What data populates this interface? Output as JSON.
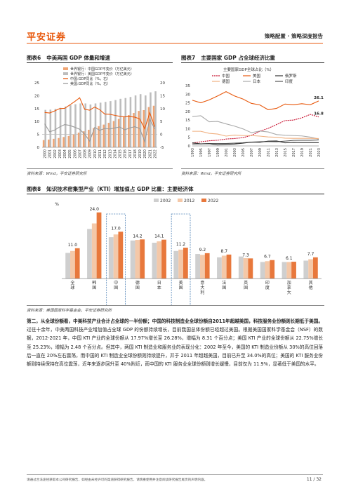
{
  "header": {
    "logo": "平安证券",
    "right": "策略配置 · 策略深度报告"
  },
  "figures": [
    {
      "num": "图表6",
      "title": "中美两国 GDP 体量和增速",
      "source": "资料来源：Wind，平安证券研究所"
    },
    {
      "num": "图表7",
      "title": "主要国家 GDP 占全球经济比重",
      "source": "资料来源：Wind，平安证券研究所"
    },
    {
      "num": "图表8",
      "title": "知识技术密集型产业（KTI）增加值占 GDP 比重：主要经济体",
      "source": "资料来源：美国国家科学基金会，平安证券研究所"
    }
  ],
  "chart_data": [
    {
      "type": "bar",
      "legend": [
        "世界银行：中国GDP不变价（万亿美元）",
        "世界银行：美国GDP不变价（万亿美元）",
        "中国:GDP同比（%，右）",
        "美国:GDP同比（%，右）"
      ],
      "categories": [
        "2000",
        "2001",
        "2002",
        "2003",
        "2004",
        "2005",
        "2006",
        "2007",
        "2008",
        "2009",
        "2010",
        "2011",
        "2012",
        "2013",
        "2014",
        "2015",
        "2016",
        "2017",
        "2018",
        "2019",
        "2020",
        "2021",
        "2022"
      ],
      "series": [
        {
          "name": "世界银行：中国GDP不变价（万亿美元）",
          "values": [
            2.8,
            3.0,
            3.3,
            3.6,
            4.0,
            4.4,
            5.0,
            5.7,
            6.2,
            6.8,
            7.5,
            8.2,
            8.8,
            9.5,
            10.2,
            11.0,
            11.7,
            12.5,
            13.3,
            14.1,
            14.4,
            15.6,
            16.1
          ]
        },
        {
          "name": "世界银行：美国GDP不变价（万亿美元）",
          "values": [
            14.5,
            14.6,
            14.9,
            15.3,
            15.8,
            16.3,
            16.7,
            17.0,
            17.0,
            16.6,
            17.0,
            17.3,
            17.6,
            17.9,
            18.3,
            18.8,
            19.1,
            19.5,
            20.1,
            20.6,
            20.1,
            21.3,
            21.7
          ]
        },
        {
          "name": "中国:GDP同比（%，右）",
          "values": [
            8.5,
            8.3,
            9.1,
            10.0,
            10.1,
            11.4,
            12.7,
            14.2,
            9.7,
            9.4,
            10.6,
            9.6,
            7.9,
            7.8,
            7.4,
            7.0,
            6.8,
            6.9,
            6.7,
            6.0,
            2.2,
            8.4,
            3.0
          ]
        },
        {
          "name": "美国:GDP同比（%，右）",
          "values": [
            4.1,
            1.0,
            1.7,
            2.9,
            3.8,
            3.5,
            2.8,
            2.0,
            0.1,
            -2.6,
            2.7,
            1.6,
            2.3,
            2.1,
            2.5,
            2.9,
            1.8,
            2.5,
            3.0,
            2.3,
            -2.8,
            5.9,
            2.1
          ]
        }
      ],
      "yticks": [
        "25",
        "20",
        "15",
        "10",
        "5",
        "0"
      ],
      "y2ticks": [
        "20",
        "15",
        "10",
        "5",
        "0",
        "-5"
      ],
      "ylim": [
        0,
        25
      ],
      "y2lim": [
        -5,
        20
      ]
    },
    {
      "type": "line",
      "subtitle": "主要国家GDP全球占比（%）",
      "legend": [
        "中国",
        "美国",
        "俄罗斯",
        "德国",
        "日本",
        "印度"
      ],
      "categories": [
        "1993",
        "1995",
        "1997",
        "1999",
        "2001",
        "2003",
        "2005",
        "2007",
        "2009",
        "2011",
        "2013",
        "2015",
        "2017",
        "2019",
        "2021",
        "2023"
      ],
      "series": [
        {
          "name": "美国",
          "values": [
            26.5,
            25.0,
            26.7,
            29.0,
            31.5,
            29.0,
            27.2,
            24.7,
            23.8,
            21.0,
            21.8,
            24.3,
            23.9,
            24.5,
            23.9,
            26.1
          ]
        },
        {
          "name": "中国",
          "values": [
            1.7,
            2.4,
            3.0,
            3.3,
            4.0,
            4.3,
            4.8,
            6.1,
            8.5,
            10.2,
            12.4,
            14.7,
            15.0,
            16.3,
            18.3,
            16.8
          ]
        },
        {
          "name": "日本",
          "values": [
            17.0,
            17.5,
            14.0,
            14.2,
            12.8,
            11.5,
            9.9,
            7.7,
            8.6,
            8.1,
            6.6,
            6.2,
            6.0,
            5.8,
            5.1,
            4.0
          ]
        },
        {
          "name": "德国",
          "values": [
            8.5,
            8.5,
            7.3,
            6.9,
            5.7,
            6.3,
            6.0,
            6.0,
            5.7,
            5.2,
            5.0,
            4.5,
            4.4,
            4.4,
            4.4,
            4.3
          ]
        },
        {
          "name": "印度",
          "values": [
            1.1,
            1.2,
            1.4,
            1.4,
            1.4,
            1.6,
            1.8,
            2.2,
            2.4,
            2.5,
            2.4,
            2.8,
            3.2,
            3.3,
            3.3,
            3.5
          ]
        },
        {
          "name": "俄罗斯",
          "values": [
            1.8,
            1.2,
            1.3,
            0.6,
            0.9,
            1.1,
            1.6,
            2.2,
            2.1,
            2.8,
            2.9,
            1.8,
            2.0,
            1.9,
            1.9,
            1.9
          ]
        }
      ],
      "labels": [
        {
          "text": "26.1",
          "series": "美国"
        },
        {
          "text": "16.8",
          "series": "中国"
        }
      ],
      "yticks": [
        "35",
        "30",
        "25",
        "20",
        "15",
        "10",
        "5",
        "0"
      ],
      "ylim": [
        0,
        35
      ]
    },
    {
      "type": "bar",
      "unit": "%",
      "legend": [
        "2002",
        "2012",
        "2022"
      ],
      "categories": [
        "全球",
        "韩国",
        "中国",
        "德国",
        "日本",
        "美国",
        "意大利",
        "法国",
        "英国",
        "印度",
        "加拿大",
        "其他"
      ],
      "category_lines": [
        [
          "全",
          "球"
        ],
        [
          "韩",
          "国"
        ],
        [
          "中",
          "国"
        ],
        [
          "德",
          "国"
        ],
        [
          "日",
          "本"
        ],
        [
          "美",
          "国"
        ],
        [
          "意",
          "大",
          "利"
        ],
        [
          "法",
          "国"
        ],
        [
          "英",
          "国"
        ],
        [
          "印",
          "度"
        ],
        [
          "加",
          "拿",
          "大"
        ],
        [
          "其",
          "他"
        ]
      ],
      "series": [
        {
          "name": "2002",
          "values": [
            9.3,
            18.0,
            15.0,
            13.8,
            13.0,
            10.0,
            8.9,
            7.7,
            8.0,
            6.0,
            6.0,
            6.5
          ]
        },
        {
          "name": "2012",
          "values": [
            10.0,
            20.0,
            16.0,
            14.0,
            13.5,
            10.5,
            8.6,
            8.3,
            7.4,
            6.3,
            6.0,
            7.0
          ]
        },
        {
          "name": "2022",
          "values": [
            11.0,
            24.0,
            17.0,
            14.2,
            14.1,
            11.2,
            9.2,
            8.7,
            7.3,
            6.7,
            6.1,
            7.7
          ]
        }
      ],
      "data_labels": [
        "11.0",
        "24.0",
        "17.0",
        "14.2",
        "14.1",
        "11.2",
        "9.2",
        "8.7",
        "7.3",
        "6.7",
        "6.1",
        "7.7"
      ],
      "highlight": [
        "中国",
        "美国"
      ],
      "ylim": [
        0,
        27
      ]
    }
  ],
  "body": {
    "p1_bold": "第二，从全球份额看，中美科技产业合计占全球的一半份额；中国的科技制造业全球份额自2011年超越美国，科技服务业份额则长期低于美国。",
    "p1_rest": "过往十余年，中美两国科技产业增加值占全球 GDP 的份额持续增长，目前我国总体份额已经超过美国。根据美国国家科学基金会（NSF）的数据，2012-2021 年，中国 KTI 产业的全球份额从 17.97%增长至 26.28%，增幅为 8.31 个百分点；美国 KTI 产业的全球份额从 22.75%增长至 25.23%，增幅为 2.48 个百分点。但其中，两国 KTI 制造业和服务业的表现分化：2002 年至今，美国的 KTI 制造业份额从 30%的高位回落后一直在 20%左右震荡，而中国的 KTI 制造业全球份额则持续提升，并于 2011 年超越美国，目前已升至 34.0%的高位；美国的 KTI 服务业份额则持续保持在高位震荡，近年来逐步回升至 40%附近，而中国的 KTI 服务业全球份额则增长缓慢，目前仅为 11.9%，显著低于美国的水平。"
  },
  "footer": {
    "disclaimer": "请通过合法途径获取本公司研究报告，如经由未经许可的渠道获得研究报告，请慎重使用并注意阅读研究报告尾页的声明内容。",
    "page": "11 / 32"
  },
  "colors": {
    "china_bar": "#f0a574",
    "us_bar": "#bdbdbd",
    "china_line": "#e8580c",
    "us_line": "#9a9a9a",
    "ch7_us": "#e8580c",
    "ch7_cn": "#c8102e",
    "ch7_ru": "#333333",
    "ch7_de": "#f0b080",
    "ch7_jp": "#aaaaaa",
    "ch7_in": "#555555",
    "ch8_2002": "#cfcfcf",
    "ch8_2012": "#f4c8a8",
    "ch8_2022": "#e8783c",
    "brand": "#e8580c"
  }
}
